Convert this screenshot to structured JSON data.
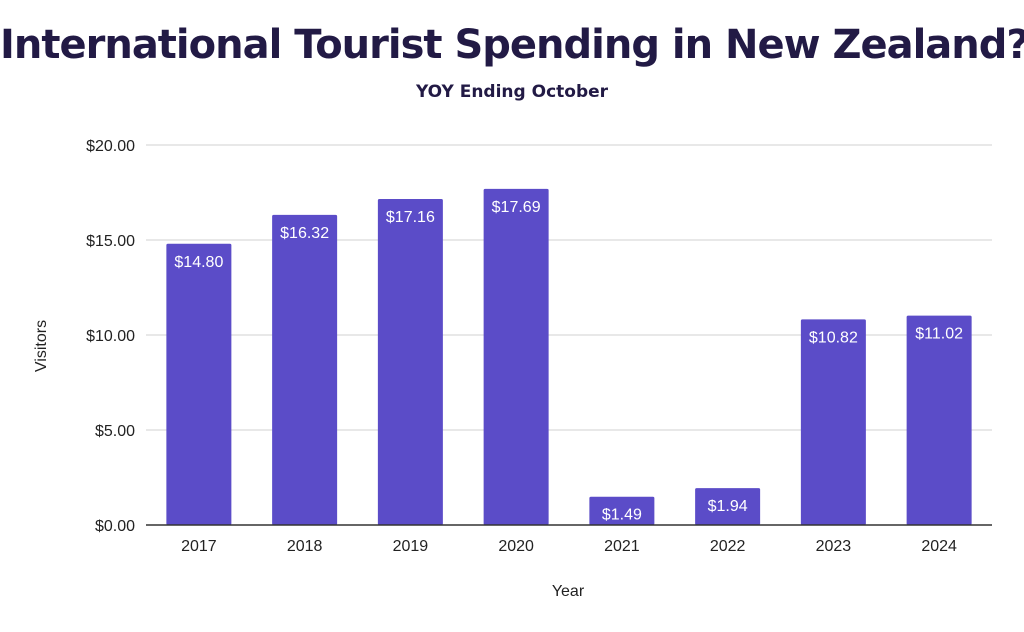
{
  "chart_data": {
    "type": "bar",
    "title": "International Tourist Spending in New Zealand?",
    "subtitle": "YOY Ending October",
    "xlabel": "Year",
    "ylabel": "Visitors",
    "categories": [
      "2017",
      "2018",
      "2019",
      "2020",
      "2021",
      "2022",
      "2023",
      "2024"
    ],
    "values": [
      14.8,
      16.32,
      17.16,
      17.69,
      1.49,
      1.94,
      10.82,
      11.02
    ],
    "data_labels": [
      "$14.80",
      "$16.32",
      "$17.16",
      "$17.69",
      "$1.49",
      "$1.94",
      "$10.82",
      "$11.02"
    ],
    "ylim": [
      0,
      20
    ],
    "yticks": [
      0,
      5,
      10,
      15,
      20
    ],
    "ytick_labels": [
      "$0.00",
      "$5.00",
      "$10.00",
      "$15.00",
      "$20.00"
    ],
    "grid": true,
    "legend": "none",
    "colors": {
      "bar": "#5b4cc8",
      "title": "#221a45",
      "gridline": "#d0d0d0",
      "axis": "#333333",
      "bar_label": "#ffffff"
    }
  }
}
